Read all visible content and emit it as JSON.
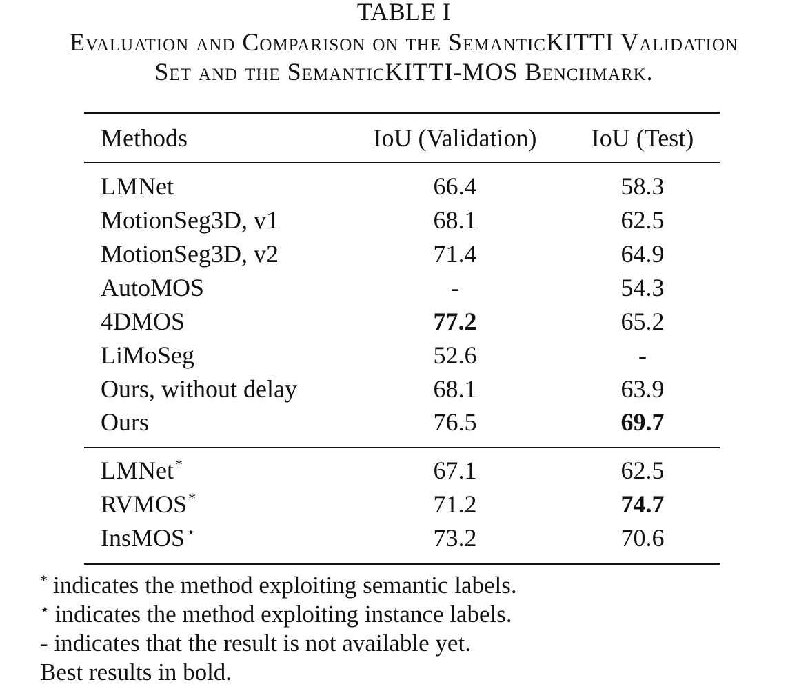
{
  "caption": {
    "number": "TABLE I",
    "line1": "Evaluation and Comparison on the SemanticKITTI Validation",
    "line2": "Set and the SemanticKITTI-MOS Benchmark."
  },
  "table": {
    "headers": [
      "Methods",
      "IoU (Validation)",
      "IoU (Test)"
    ],
    "rows": [
      {
        "method": "LMNet",
        "mark": "",
        "validation": "66.4",
        "test": "58.3",
        "bold_validation": false,
        "bold_test": false
      },
      {
        "method": "MotionSeg3D, v1",
        "mark": "",
        "validation": "68.1",
        "test": "62.5",
        "bold_validation": false,
        "bold_test": false
      },
      {
        "method": "MotionSeg3D, v2",
        "mark": "",
        "validation": "71.4",
        "test": "64.9",
        "bold_validation": false,
        "bold_test": false
      },
      {
        "method": "AutoMOS",
        "mark": "",
        "validation": "-",
        "test": "54.3",
        "bold_validation": false,
        "bold_test": false
      },
      {
        "method": "4DMOS",
        "mark": "",
        "validation": "77.2",
        "test": "65.2",
        "bold_validation": true,
        "bold_test": false
      },
      {
        "method": "LiMoSeg",
        "mark": "",
        "validation": "52.6",
        "test": "-",
        "bold_validation": false,
        "bold_test": false
      },
      {
        "method": "Ours, without delay",
        "mark": "",
        "validation": "68.1",
        "test": "63.9",
        "bold_validation": false,
        "bold_test": false
      },
      {
        "method": "Ours",
        "mark": "",
        "validation": "76.5",
        "test": "69.7",
        "bold_validation": false,
        "bold_test": true
      },
      {
        "method": "LMNet",
        "mark": "*",
        "validation": "67.1",
        "test": "62.5",
        "bold_validation": false,
        "bold_test": false
      },
      {
        "method": "RVMOS",
        "mark": "*",
        "validation": "71.2",
        "test": "74.7",
        "bold_validation": false,
        "bold_test": true
      },
      {
        "method": "InsMOS",
        "mark": "⋆",
        "validation": "73.2",
        "test": "70.6",
        "bold_validation": false,
        "bold_test": false
      }
    ]
  },
  "notes": [
    {
      "symbol": "*",
      "text": "indicates the method exploiting semantic labels."
    },
    {
      "symbol": "⋆",
      "text": "indicates the method exploiting instance labels."
    },
    {
      "symbol": "",
      "text": "- indicates that the result is not available yet."
    },
    {
      "symbol": "",
      "text": "Best results in bold."
    }
  ]
}
